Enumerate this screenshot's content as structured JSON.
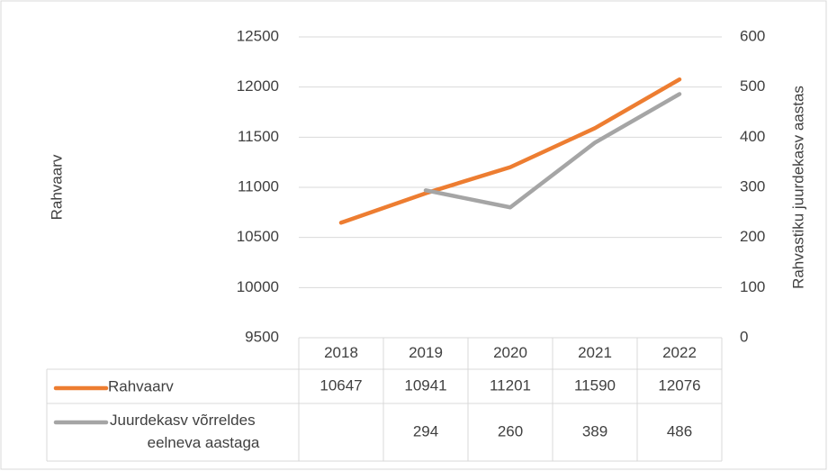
{
  "chart_data": {
    "type": "line",
    "categories": [
      "2018",
      "2019",
      "2020",
      "2021",
      "2022"
    ],
    "series": [
      {
        "name": "Rahvaarv",
        "color": "#ed7d31",
        "values": [
          10647,
          10941,
          11201,
          11590,
          12076
        ]
      },
      {
        "name": "Juurdekasv võrreldes eelneva aastaga",
        "color": "#a5a5a5",
        "axis": "y2",
        "values": [
          null,
          294,
          260,
          389,
          486
        ]
      }
    ],
    "y_label": "Rahvaarv",
    "y2_label": "Rahvastiku juurdekasv aastas",
    "ylim": [
      9500,
      12500
    ],
    "yticks": [
      9500,
      10000,
      10500,
      11000,
      11500,
      12000,
      12500
    ],
    "y2lim": [
      0,
      600
    ],
    "y2ticks": [
      0,
      100,
      200,
      300,
      400,
      500,
      600
    ],
    "grid": true,
    "data_table": true
  }
}
